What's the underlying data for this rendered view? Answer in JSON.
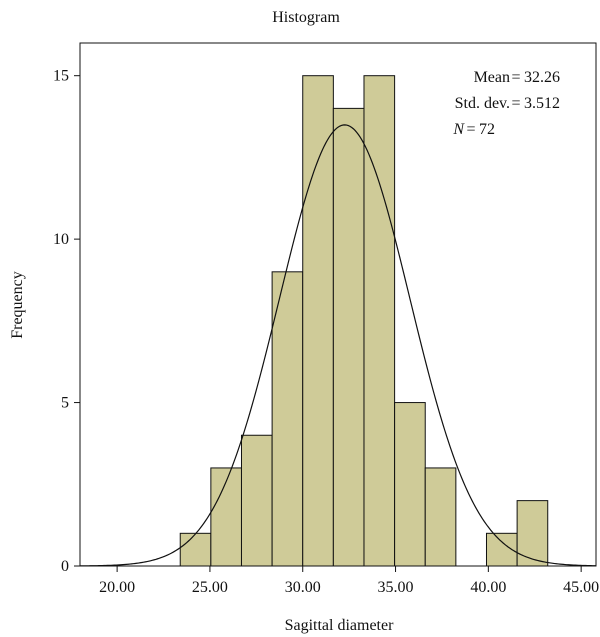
{
  "chart_data": {
    "type": "bar",
    "title": "Histogram",
    "xlabel": "Sagittal diameter",
    "ylabel": "Frequency",
    "xlim": [
      18.0,
      45.8
    ],
    "ylim": [
      0,
      16.0
    ],
    "x_ticks": [
      20,
      25,
      30,
      35,
      40,
      45
    ],
    "x_tick_labels": [
      "20.00",
      "25.00",
      "30.00",
      "35.00",
      "40.00",
      "45.00"
    ],
    "y_ticks": [
      0,
      5,
      10,
      15
    ],
    "y_tick_labels": [
      "0",
      "5",
      "10",
      "15"
    ],
    "bin_width": 1.65,
    "bin_starts": [
      23.4,
      25.05,
      26.7,
      28.35,
      30.0,
      31.65,
      33.3,
      34.95,
      36.6,
      38.25,
      39.9,
      41.55
    ],
    "values": [
      1,
      3,
      4,
      9,
      15,
      14,
      15,
      5,
      3,
      0,
      1,
      2
    ],
    "bar_color": "#cfcb98",
    "normal_curve": {
      "mean": 32.26,
      "std_dev": 3.512,
      "n": 72
    },
    "annotations": [
      {
        "label": "Mean",
        "value": "32.26"
      },
      {
        "label": "Std. dev.",
        "value": "3.512"
      },
      {
        "label": "N",
        "value": "72"
      }
    ],
    "grid": false,
    "legend": "none"
  }
}
